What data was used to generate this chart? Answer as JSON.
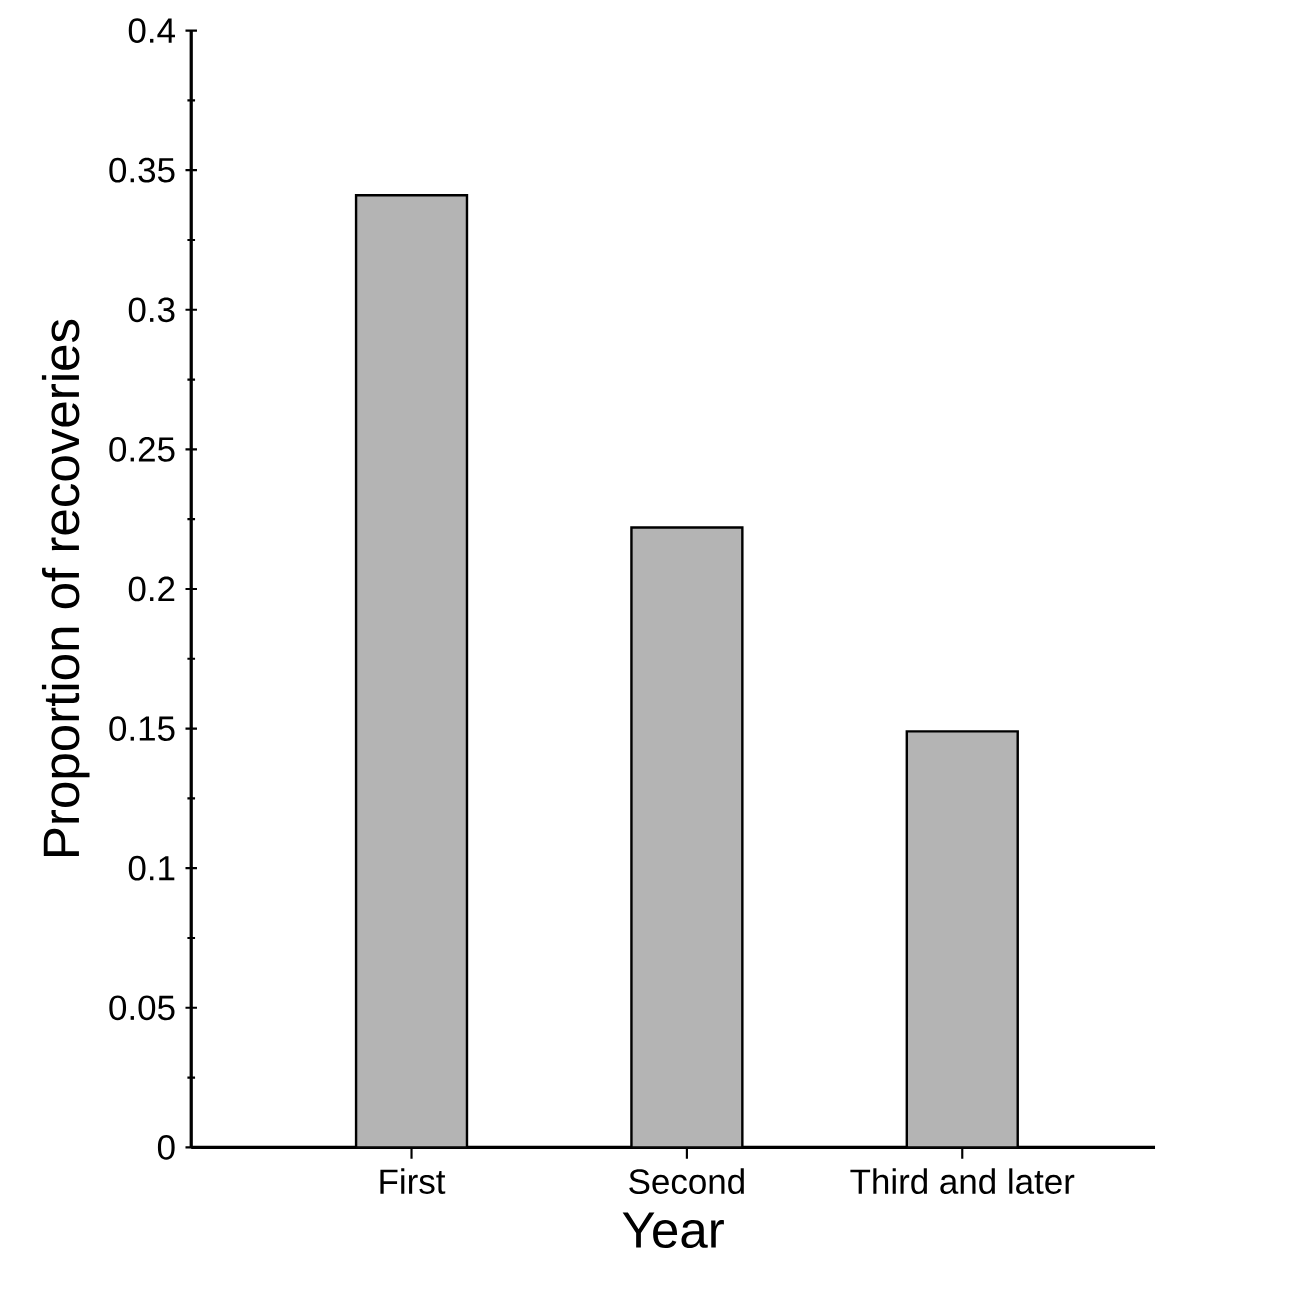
{
  "chart_data": {
    "type": "bar",
    "xlabel": "Year",
    "ylabel": "Proportion of recoveries",
    "categories": [
      "First",
      "Second",
      "Third and later"
    ],
    "values": [
      0.341,
      0.222,
      0.149
    ],
    "color": "#b4b4b4",
    "ylim": [
      0,
      0.4
    ],
    "yticks": [
      0,
      0.05,
      0.1,
      0.15,
      0.2,
      0.25,
      0.3,
      0.35,
      0.4
    ]
  }
}
